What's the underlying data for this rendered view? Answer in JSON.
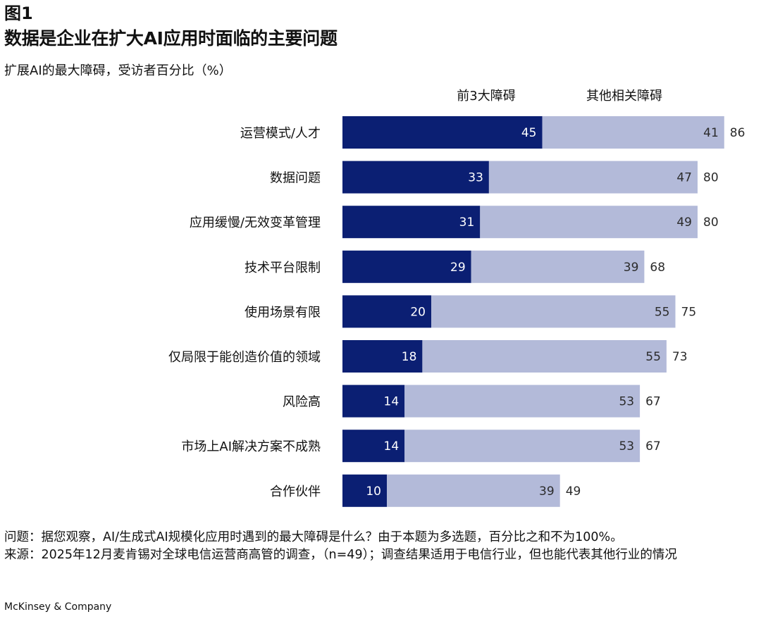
{
  "figure_label": "图1",
  "title": "数据是企业在扩大AI应用时面临的主要问题",
  "subtitle": "扩展AI的最大障碍，受访者百分比（%）",
  "colors": {
    "top3": "#0b1f73",
    "other": "#b3bad9",
    "label_on_dark": "#ffffff",
    "label_on_light": "#2b2b2b",
    "total_label": "#2b2b2b"
  },
  "chart_data": {
    "type": "bar",
    "orientation": "horizontal",
    "stacked": true,
    "title": "数据是企业在扩大AI应用时面临的主要问题",
    "subtitle": "扩展AI的最大障碍，受访者百分比（%）",
    "categories": [
      "运营模式/人才",
      "数据问题",
      "应用缓慢/无效变革管理",
      "技术平台限制",
      "使用场景有限",
      "仅局限于能创造价值的领域",
      "风险高",
      "市场上AI解决方案不成熟",
      "合作伙伴"
    ],
    "series": [
      {
        "name": "前3大障碍",
        "values": [
          45,
          33,
          31,
          29,
          20,
          18,
          14,
          14,
          10
        ]
      },
      {
        "name": "其他相关障碍",
        "values": [
          41,
          47,
          49,
          39,
          55,
          55,
          53,
          53,
          39
        ]
      }
    ],
    "totals": [
      86,
      80,
      80,
      68,
      75,
      73,
      67,
      67,
      49
    ],
    "xlim": [
      0,
      86
    ],
    "legend": "top",
    "grid": false,
    "xlabel": "",
    "ylabel": ""
  },
  "notes": {
    "question": "问题：据您观察，AI/生成式AI规模化应用时遇到的最大障碍是什么？由于本题为多选题，百分比之和不为100%。",
    "source": "来源：2025年12月麦肯锡对全球电信运营商高管的调查，（n=49）；调查结果适用于电信行业，但也能代表其他行业的情况"
  },
  "brand": "McKinsey & Company"
}
